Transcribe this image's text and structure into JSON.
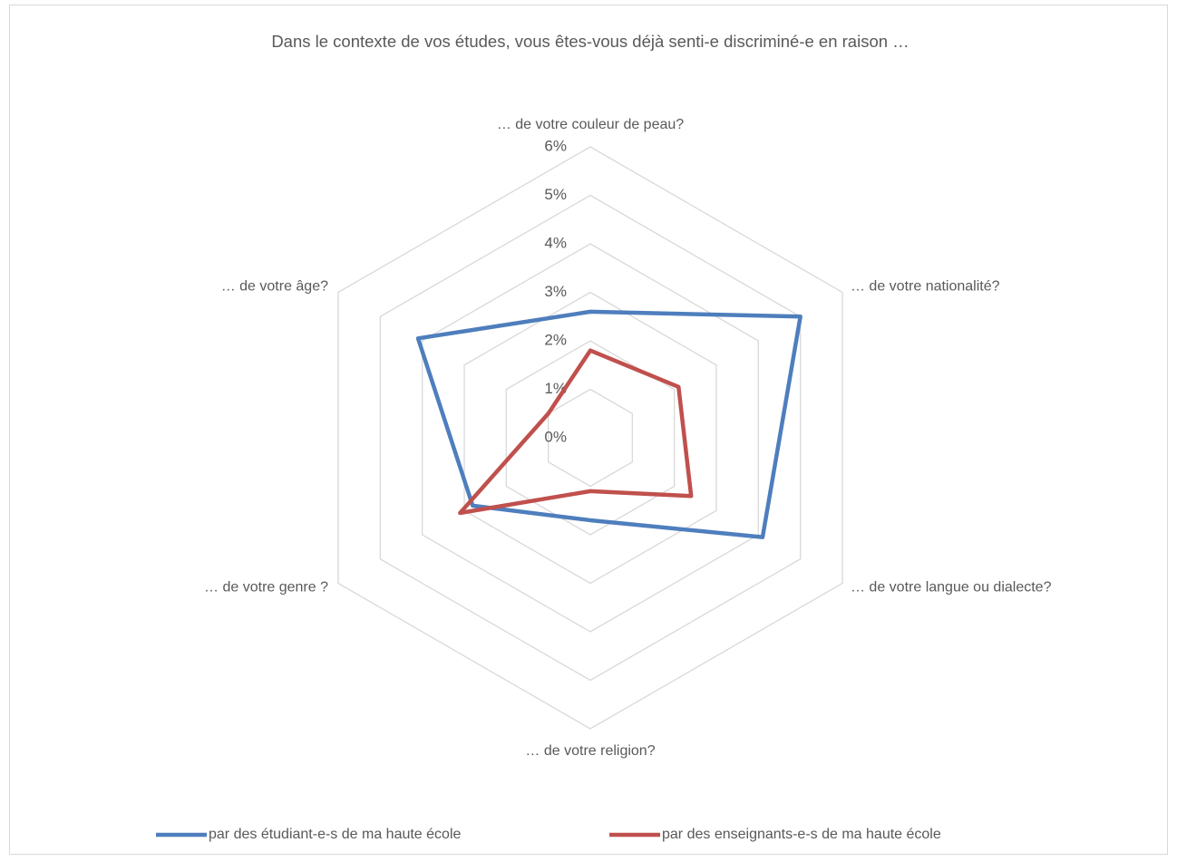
{
  "chart_data": {
    "type": "radar",
    "title": "Dans le contexte de vos études, vous êtes-vous déjà senti-e discriminé-e en raison …",
    "categories": [
      "… de votre couleur de peau?",
      "… de votre nationalité?",
      "… de votre langue ou dialecte?",
      "… de votre religion?",
      "… de votre genre ?",
      "… de votre âge?"
    ],
    "series": [
      {
        "name": "par des étudiant-e-s de ma haute école",
        "color": "#4e7ebd",
        "values": [
          2.6,
          5.0,
          4.1,
          1.7,
          2.8,
          4.1
        ]
      },
      {
        "name": "par des enseignants-e-s de ma haute école",
        "color": "#c0504d",
        "values": [
          1.8,
          2.1,
          2.4,
          1.1,
          3.1,
          1.0
        ]
      }
    ],
    "ylim": [
      0,
      6
    ],
    "yticks": [
      {
        "value": 0,
        "label": "0%"
      },
      {
        "value": 1,
        "label": "1%"
      },
      {
        "value": 2,
        "label": "2%"
      },
      {
        "value": 3,
        "label": "3%"
      },
      {
        "value": 4,
        "label": "4%"
      },
      {
        "value": 5,
        "label": "5%"
      },
      {
        "value": 6,
        "label": "6%"
      }
    ],
    "grid": true,
    "legend": "bottom"
  }
}
